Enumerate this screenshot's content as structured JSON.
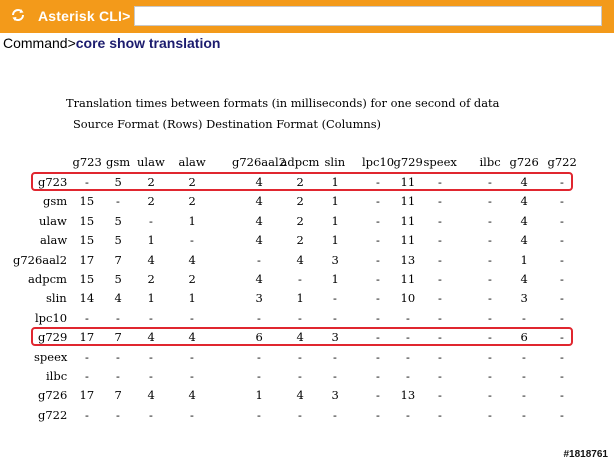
{
  "toolbar": {
    "icon": "refresh-icon",
    "title": "Asterisk CLI>",
    "input_value": ""
  },
  "command": {
    "prompt": "Command>",
    "text": "core show translation"
  },
  "output": {
    "header_line1": "Translation times between formats (in milliseconds) for one second of data",
    "header_line2": "Source Format (Rows) Destination Format (Columns)"
  },
  "table": {
    "columns": [
      "g723",
      "gsm",
      "ulaw",
      "alaw",
      "g726aal2",
      "adpcm",
      "slin",
      "lpc10",
      "g729",
      "speex",
      "ilbc",
      "g726",
      "g722"
    ],
    "rows": [
      {
        "label": "g723",
        "values": [
          "-",
          "5",
          "2",
          "2",
          "4",
          "2",
          "1",
          "-",
          "11",
          "-",
          "-",
          "4",
          "-"
        ],
        "highlighted": true
      },
      {
        "label": "gsm",
        "values": [
          "15",
          "-",
          "2",
          "2",
          "4",
          "2",
          "1",
          "-",
          "11",
          "-",
          "-",
          "4",
          "-"
        ],
        "highlighted": false
      },
      {
        "label": "ulaw",
        "values": [
          "15",
          "5",
          "-",
          "1",
          "4",
          "2",
          "1",
          "-",
          "11",
          "-",
          "-",
          "4",
          "-"
        ],
        "highlighted": false
      },
      {
        "label": "alaw",
        "values": [
          "15",
          "5",
          "1",
          "-",
          "4",
          "2",
          "1",
          "-",
          "11",
          "-",
          "-",
          "4",
          "-"
        ],
        "highlighted": false
      },
      {
        "label": "g726aal2",
        "values": [
          "17",
          "7",
          "4",
          "4",
          "-",
          "4",
          "3",
          "-",
          "13",
          "-",
          "-",
          "1",
          "-"
        ],
        "highlighted": false
      },
      {
        "label": "adpcm",
        "values": [
          "15",
          "5",
          "2",
          "2",
          "4",
          "-",
          "1",
          "-",
          "11",
          "-",
          "-",
          "4",
          "-"
        ],
        "highlighted": false
      },
      {
        "label": "slin",
        "values": [
          "14",
          "4",
          "1",
          "1",
          "3",
          "1",
          "-",
          "-",
          "10",
          "-",
          "-",
          "3",
          "-"
        ],
        "highlighted": false
      },
      {
        "label": "lpc10",
        "values": [
          "-",
          "-",
          "-",
          "-",
          "-",
          "-",
          "-",
          "-",
          "-",
          "-",
          "-",
          "-",
          "-"
        ],
        "highlighted": false
      },
      {
        "label": "g729",
        "values": [
          "17",
          "7",
          "4",
          "4",
          "6",
          "4",
          "3",
          "-",
          "-",
          "-",
          "-",
          "6",
          "-"
        ],
        "highlighted": true
      },
      {
        "label": "speex",
        "values": [
          "-",
          "-",
          "-",
          "-",
          "-",
          "-",
          "-",
          "-",
          "-",
          "-",
          "-",
          "-",
          "-"
        ],
        "highlighted": false
      },
      {
        "label": "ilbc",
        "values": [
          "-",
          "-",
          "-",
          "-",
          "-",
          "-",
          "-",
          "-",
          "-",
          "-",
          "-",
          "-",
          "-"
        ],
        "highlighted": false
      },
      {
        "label": "g726",
        "values": [
          "17",
          "7",
          "4",
          "4",
          "1",
          "4",
          "3",
          "-",
          "13",
          "-",
          "-",
          "-",
          "-"
        ],
        "highlighted": false
      },
      {
        "label": "g722",
        "values": [
          "-",
          "-",
          "-",
          "-",
          "-",
          "-",
          "-",
          "-",
          "-",
          "-",
          "-",
          "-",
          "-"
        ],
        "highlighted": false
      }
    ]
  },
  "watermark": "#1818761",
  "colors": {
    "toolbar_bg": "#f39a1a",
    "highlight": "#e0262f"
  }
}
